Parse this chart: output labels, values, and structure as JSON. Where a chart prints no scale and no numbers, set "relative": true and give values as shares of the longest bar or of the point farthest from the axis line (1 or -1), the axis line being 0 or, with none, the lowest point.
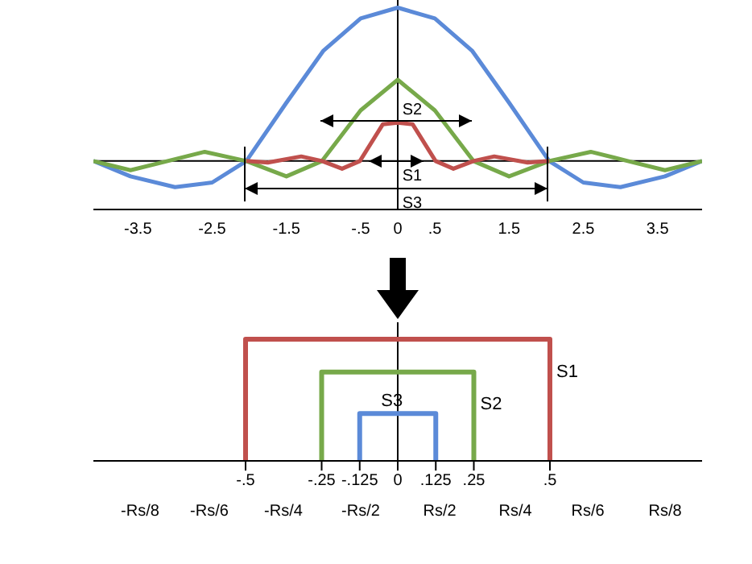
{
  "chart_data": [
    {
      "type": "line",
      "relative": true,
      "xlim": [
        -4.1,
        4.1
      ],
      "xticks": [
        -3.5,
        -2.5,
        -1.5,
        {
          "value": -0.5,
          "label": "-.5"
        },
        0,
        {
          "value": 0.5,
          "label": ".5"
        },
        1.5,
        2.5,
        3.5
      ],
      "series": [
        {
          "color": "#5b8ad8",
          "x": [
            -4.1,
            -3.6,
            -3.0,
            -2.5,
            -2.04,
            -1.5,
            -1.0,
            -0.5,
            0,
            0.5,
            1.0,
            1.5,
            2.04,
            2.5,
            3.0,
            3.6,
            4.1
          ],
          "values": [
            0,
            -0.1,
            -0.17,
            -0.14,
            0,
            0.38,
            0.72,
            0.93,
            1,
            0.93,
            0.72,
            0.38,
            0,
            -0.14,
            -0.17,
            -0.1,
            0
          ]
        },
        {
          "color": "#77a94a",
          "x": [
            -4.1,
            -3.6,
            -3.1,
            -2.6,
            -2.04,
            -1.5,
            -1.02,
            -0.5,
            0,
            0.5,
            1.02,
            1.5,
            2.04,
            2.6,
            3.1,
            3.6,
            4.1
          ],
          "values": [
            0,
            -0.06,
            0,
            0.06,
            0,
            -0.1,
            0,
            0.33,
            0.53,
            0.33,
            0,
            -0.1,
            0,
            0.06,
            0,
            -0.06,
            0
          ]
        },
        {
          "color": "#c0504d",
          "x": [
            -2.04,
            -1.75,
            -1.3,
            -1.02,
            -0.75,
            -0.51,
            -0.2,
            0,
            0.2,
            0.51,
            0.75,
            1.02,
            1.3,
            1.75,
            2.04
          ],
          "values": [
            0,
            -0.01,
            0.03,
            0,
            -0.05,
            0,
            0.24,
            0.25,
            0.24,
            0,
            -0.05,
            0,
            0.03,
            -0.01,
            0
          ]
        }
      ],
      "annotations": [
        "S1",
        "S2",
        "S3"
      ]
    },
    {
      "type": "line",
      "relative": true,
      "xlim": [
        -1,
        1
      ],
      "xticks": [
        {
          "value": -0.5,
          "label": "-.5"
        },
        {
          "value": -0.25,
          "label": "-.25"
        },
        {
          "value": -0.125,
          "label": "-.125"
        },
        0,
        {
          "value": 0.125,
          "label": ".125"
        },
        {
          "value": 0.25,
          "label": ".25"
        },
        {
          "value": 0.5,
          "label": ".5"
        }
      ],
      "annotations": [
        "-Rs/8",
        "-Rs/6",
        "-Rs/4",
        "-Rs/2",
        "Rs/2",
        "Rs/4",
        "Rs/6",
        "Rs/8"
      ],
      "series": [
        {
          "name": "S1",
          "color": "#c0504d",
          "x": [
            -0.5,
            -0.5,
            0.5,
            0.5
          ],
          "values": [
            0,
            1,
            1,
            0
          ]
        },
        {
          "name": "S2",
          "color": "#77a94a",
          "x": [
            -0.25,
            -0.25,
            0.25,
            0.25
          ],
          "values": [
            0,
            0.73,
            0.73,
            0
          ]
        },
        {
          "name": "S3",
          "color": "#5b8ad8",
          "x": [
            -0.125,
            -0.125,
            0.125,
            0.125
          ],
          "values": [
            0,
            0.39,
            0.39,
            0
          ]
        }
      ]
    }
  ]
}
